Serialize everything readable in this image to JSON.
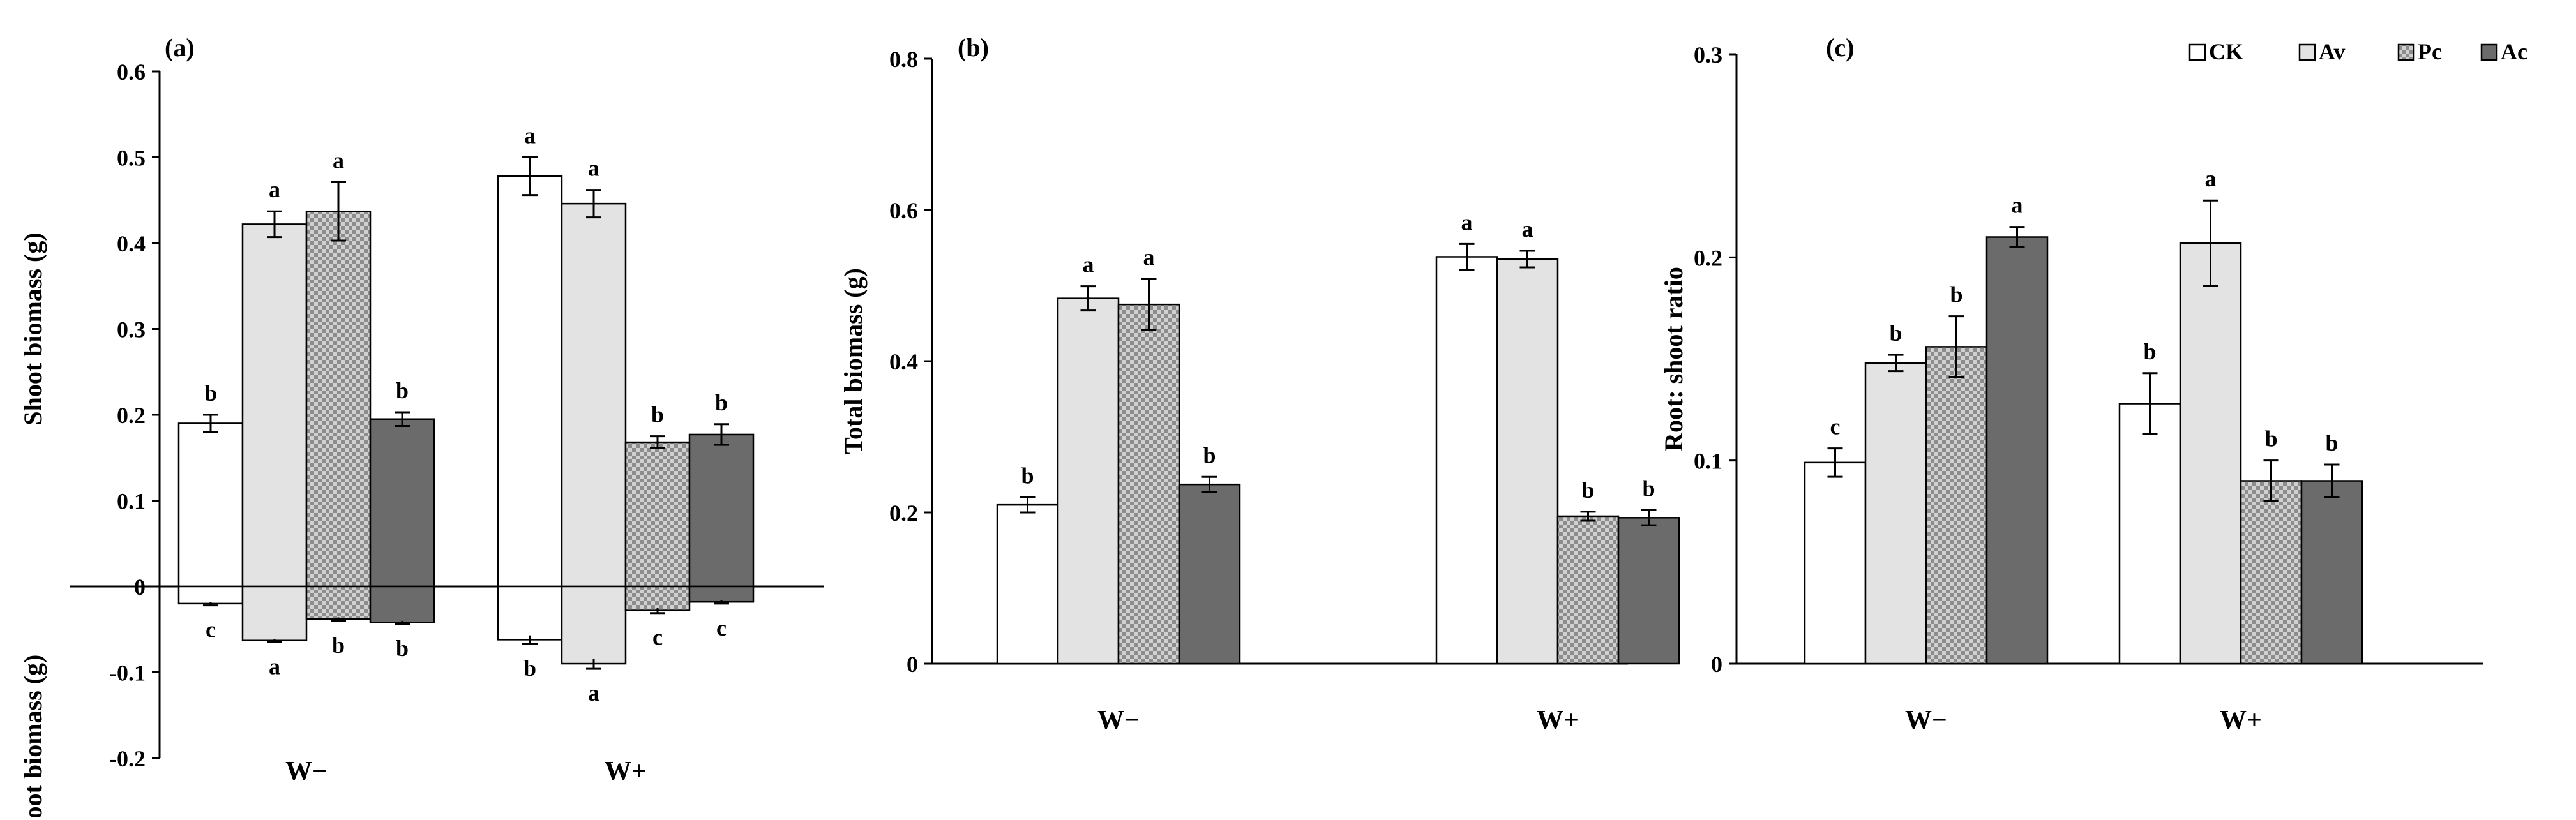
{
  "figure": {
    "legend": [
      {
        "label": "CK",
        "color": "#ffffff",
        "pattern": "none"
      },
      {
        "label": "Av",
        "color": "#e3e3e3",
        "pattern": "none"
      },
      {
        "label": "Pc",
        "color": "#b5b5b5",
        "pattern": "checker"
      },
      {
        "label": "Ac",
        "color": "#6b6b6b",
        "pattern": "none"
      }
    ],
    "legend_position": "top-right of panel (c)"
  },
  "chart_data": [
    {
      "panel": "(a)",
      "type": "bar",
      "categories": [
        "W−",
        "W+"
      ],
      "ylabel_top": "Shoot biomass (g)",
      "ylabel_bottom": "Root biomass (g)",
      "ylim": [
        -0.2,
        0.6
      ],
      "yticks": [
        "0.6",
        "0.5",
        "0.4",
        "0.3",
        "0.2",
        "0.1",
        "0",
        "-0.1",
        "-0.2"
      ],
      "ytick_values": [
        0.6,
        0.5,
        0.4,
        0.3,
        0.2,
        0.1,
        0,
        -0.1,
        -0.2
      ],
      "zero_line": true,
      "series": [
        {
          "name": "CK",
          "values": [
            0.19,
            0.478
          ],
          "errors": [
            0.01,
            0.022
          ],
          "letters": [
            "b",
            "a"
          ],
          "neg_values": [
            -0.02,
            -0.062
          ],
          "neg_errors": [
            0.002,
            0.005
          ],
          "neg_letters": [
            "c",
            "b"
          ]
        },
        {
          "name": "Av",
          "values": [
            0.422,
            0.446
          ],
          "errors": [
            0.015,
            0.016
          ],
          "letters": [
            "a",
            "a"
          ],
          "neg_values": [
            -0.063,
            -0.09
          ],
          "neg_errors": [
            0.002,
            0.006
          ],
          "neg_letters": [
            "a",
            "a"
          ]
        },
        {
          "name": "Pc",
          "values": [
            0.437,
            0.168
          ],
          "errors": [
            0.034,
            0.007
          ],
          "letters": [
            "a",
            "b"
          ],
          "neg_values": [
            -0.038,
            -0.028
          ],
          "neg_errors": [
            0.002,
            0.003
          ],
          "neg_letters": [
            "b",
            "c"
          ]
        },
        {
          "name": "Ac",
          "values": [
            0.195,
            0.177
          ],
          "errors": [
            0.008,
            0.012
          ],
          "letters": [
            "b",
            "b"
          ],
          "neg_values": [
            -0.042,
            -0.018
          ],
          "neg_errors": [
            0.002,
            0.002
          ],
          "neg_letters": [
            "b",
            "c"
          ]
        }
      ],
      "grid": false
    },
    {
      "panel": "(b)",
      "type": "bar",
      "categories": [
        "W−",
        "W+"
      ],
      "ylabel": "Total biomass (g)",
      "ylim": [
        0,
        0.8
      ],
      "yticks": [
        "0.8",
        "0.6",
        "0.4",
        "0.2",
        "0"
      ],
      "ytick_values": [
        0.8,
        0.6,
        0.4,
        0.2,
        0
      ],
      "series": [
        {
          "name": "CK",
          "values": [
            0.21,
            0.538
          ],
          "errors": [
            0.01,
            0.017
          ],
          "letters": [
            "b",
            "a"
          ]
        },
        {
          "name": "Av",
          "values": [
            0.483,
            0.535
          ],
          "errors": [
            0.016,
            0.011
          ],
          "letters": [
            "a",
            "a"
          ]
        },
        {
          "name": "Pc",
          "values": [
            0.475,
            0.195
          ],
          "errors": [
            0.034,
            0.006
          ],
          "letters": [
            "a",
            "b"
          ]
        },
        {
          "name": "Ac",
          "values": [
            0.237,
            0.193
          ],
          "errors": [
            0.01,
            0.01
          ],
          "letters": [
            "b",
            "b"
          ]
        }
      ],
      "grid": false
    },
    {
      "panel": "(c)",
      "type": "bar",
      "categories": [
        "W−",
        "W+"
      ],
      "ylabel": "Root: shoot ratio",
      "ylim": [
        0,
        0.3
      ],
      "yticks": [
        "0.3",
        "0.2",
        "0.1",
        "0"
      ],
      "ytick_values": [
        0.3,
        0.2,
        0.1,
        0
      ],
      "series": [
        {
          "name": "CK",
          "values": [
            0.099,
            0.128
          ],
          "errors": [
            0.007,
            0.015
          ],
          "letters": [
            "c",
            "b"
          ]
        },
        {
          "name": "Av",
          "values": [
            0.148,
            0.207
          ],
          "errors": [
            0.004,
            0.021
          ],
          "letters": [
            "b",
            "a"
          ]
        },
        {
          "name": "Pc",
          "values": [
            0.156,
            0.09
          ],
          "errors": [
            0.015,
            0.01
          ],
          "letters": [
            "b",
            "b"
          ]
        },
        {
          "name": "Ac",
          "values": [
            0.21,
            0.09
          ],
          "errors": [
            0.005,
            0.008
          ],
          "letters": [
            "a",
            "b"
          ]
        }
      ],
      "grid": false
    }
  ]
}
